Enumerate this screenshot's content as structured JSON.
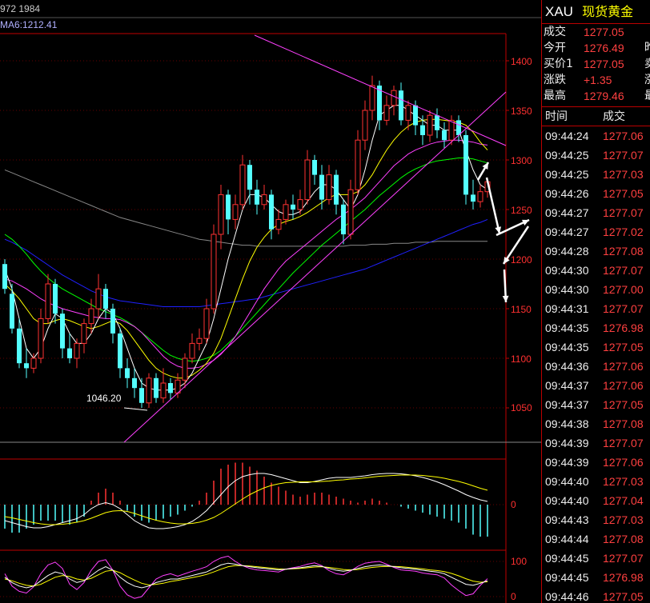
{
  "header": {
    "partial_text": "972 1984",
    "ma_label": "MA6:1212.41"
  },
  "price_axis": [
    "1400",
    "1350",
    "1300",
    "1250",
    "1200",
    "1150",
    "1100",
    "1050"
  ],
  "macd_axis": [
    "0"
  ],
  "kdj_axis": [
    "100",
    "0"
  ],
  "annotation_low": "1046.20",
  "colors": {
    "up": "#ff3232",
    "down": "#54ffff",
    "axis": "#c00000",
    "ma_short": "#ffffff",
    "ma_mid": "#ffff00",
    "ma_long": "#ff40ff",
    "ma_green": "#00ff00",
    "ma_blue": "#2020ff",
    "ma_gray": "#888888",
    "trend": "#ff40ff"
  },
  "sidebar": {
    "code": "XAU",
    "name": "现货黄金",
    "quotes": [
      {
        "label": "成交",
        "value": "1277.05",
        "extra": ""
      },
      {
        "label": "今开",
        "value": "1276.49",
        "extra": "昨"
      },
      {
        "label": "买价1",
        "value": "1277.05",
        "extra": "卖"
      },
      {
        "label": "涨跌",
        "value": "+1.35",
        "extra": "涨"
      },
      {
        "label": "最高",
        "value": "1279.46",
        "extra": "最"
      }
    ],
    "ticks_header": {
      "time": "时间",
      "price": "成交"
    },
    "ticks": [
      {
        "time": "09:44:24",
        "price": "1277.06"
      },
      {
        "time": "09:44:25",
        "price": "1277.07"
      },
      {
        "time": "09:44:25",
        "price": "1277.03"
      },
      {
        "time": "09:44:26",
        "price": "1277.05"
      },
      {
        "time": "09:44:27",
        "price": "1277.07"
      },
      {
        "time": "09:44:27",
        "price": "1277.02"
      },
      {
        "time": "09:44:28",
        "price": "1277.08"
      },
      {
        "time": "09:44:30",
        "price": "1277.07"
      },
      {
        "time": "09:44:30",
        "price": "1277.00"
      },
      {
        "time": "09:44:31",
        "price": "1277.07"
      },
      {
        "time": "09:44:35",
        "price": "1276.98"
      },
      {
        "time": "09:44:35",
        "price": "1277.05"
      },
      {
        "time": "09:44:36",
        "price": "1277.06"
      },
      {
        "time": "09:44:37",
        "price": "1277.06"
      },
      {
        "time": "09:44:37",
        "price": "1277.05"
      },
      {
        "time": "09:44:38",
        "price": "1277.08"
      },
      {
        "time": "09:44:39",
        "price": "1277.07"
      },
      {
        "time": "09:44:39",
        "price": "1277.06"
      },
      {
        "time": "09:44:40",
        "price": "1277.03"
      },
      {
        "time": "09:44:40",
        "price": "1277.04"
      },
      {
        "time": "09:44:43",
        "price": "1277.03"
      },
      {
        "time": "09:44:44",
        "price": "1277.08"
      },
      {
        "time": "09:44:45",
        "price": "1277.07"
      },
      {
        "time": "09:44:45",
        "price": "1276.98"
      },
      {
        "time": "09:44:46",
        "price": "1277.05"
      }
    ]
  },
  "chart_data": {
    "type": "candlestick",
    "ylim": [
      1030,
      1420
    ],
    "y_ticks": [
      1050,
      1100,
      1150,
      1200,
      1250,
      1300,
      1350,
      1400
    ],
    "candles": [
      [
        1195,
        1170,
        1200,
        1165
      ],
      [
        1165,
        1130,
        1175,
        1125
      ],
      [
        1130,
        1095,
        1140,
        1090
      ],
      [
        1095,
        1090,
        1110,
        1080
      ],
      [
        1090,
        1100,
        1105,
        1085
      ],
      [
        1100,
        1140,
        1150,
        1095
      ],
      [
        1140,
        1175,
        1185,
        1135
      ],
      [
        1175,
        1145,
        1180,
        1135
      ],
      [
        1145,
        1110,
        1150,
        1100
      ],
      [
        1110,
        1100,
        1125,
        1095
      ],
      [
        1100,
        1115,
        1120,
        1090
      ],
      [
        1115,
        1135,
        1140,
        1105
      ],
      [
        1135,
        1150,
        1160,
        1125
      ],
      [
        1150,
        1170,
        1185,
        1140
      ],
      [
        1170,
        1150,
        1175,
        1140
      ],
      [
        1150,
        1125,
        1155,
        1115
      ],
      [
        1125,
        1090,
        1130,
        1080
      ],
      [
        1090,
        1080,
        1100,
        1070
      ],
      [
        1080,
        1070,
        1090,
        1060
      ],
      [
        1070,
        1055,
        1080,
        1050
      ],
      [
        1055,
        1080,
        1085,
        1050
      ],
      [
        1080,
        1060,
        1085,
        1055
      ],
      [
        1060,
        1075,
        1090,
        1055
      ],
      [
        1075,
        1065,
        1080,
        1058
      ],
      [
        1065,
        1078,
        1085,
        1060
      ],
      [
        1078,
        1100,
        1105,
        1070
      ],
      [
        1100,
        1115,
        1125,
        1095
      ],
      [
        1115,
        1120,
        1130,
        1108
      ],
      [
        1120,
        1150,
        1160,
        1115
      ],
      [
        1150,
        1225,
        1235,
        1145
      ],
      [
        1225,
        1265,
        1275,
        1210
      ],
      [
        1265,
        1240,
        1270,
        1225
      ],
      [
        1240,
        1255,
        1265,
        1230
      ],
      [
        1255,
        1295,
        1305,
        1250
      ],
      [
        1295,
        1270,
        1300,
        1255
      ],
      [
        1270,
        1255,
        1280,
        1245
      ],
      [
        1255,
        1265,
        1275,
        1250
      ],
      [
        1265,
        1230,
        1270,
        1220
      ],
      [
        1230,
        1240,
        1250,
        1225
      ],
      [
        1240,
        1255,
        1260,
        1235
      ],
      [
        1255,
        1250,
        1265,
        1240
      ],
      [
        1250,
        1260,
        1270,
        1245
      ],
      [
        1260,
        1300,
        1310,
        1255
      ],
      [
        1300,
        1285,
        1305,
        1275
      ],
      [
        1285,
        1260,
        1295,
        1250
      ],
      [
        1260,
        1285,
        1295,
        1255
      ],
      [
        1285,
        1255,
        1290,
        1245
      ],
      [
        1255,
        1225,
        1260,
        1215
      ],
      [
        1225,
        1270,
        1280,
        1220
      ],
      [
        1270,
        1320,
        1330,
        1265
      ],
      [
        1320,
        1350,
        1360,
        1310
      ],
      [
        1350,
        1375,
        1385,
        1340
      ],
      [
        1375,
        1340,
        1380,
        1330
      ],
      [
        1340,
        1355,
        1365,
        1335
      ],
      [
        1355,
        1370,
        1375,
        1345
      ],
      [
        1370,
        1340,
        1378,
        1335
      ],
      [
        1340,
        1355,
        1360,
        1330
      ],
      [
        1355,
        1335,
        1360,
        1325
      ],
      [
        1335,
        1325,
        1345,
        1315
      ],
      [
        1325,
        1345,
        1350,
        1318
      ],
      [
        1345,
        1330,
        1352,
        1322
      ],
      [
        1330,
        1320,
        1338,
        1312
      ],
      [
        1320,
        1340,
        1345,
        1315
      ],
      [
        1340,
        1325,
        1345,
        1318
      ],
      [
        1325,
        1265,
        1330,
        1255
      ],
      [
        1265,
        1258,
        1280,
        1250
      ],
      [
        1258,
        1268,
        1275,
        1252
      ],
      [
        1268,
        1278,
        1282,
        1262
      ]
    ],
    "ma_short": [
      1190,
      1170,
      1140,
      1110,
      1100,
      1110,
      1130,
      1145,
      1140,
      1125,
      1115,
      1115,
      1125,
      1140,
      1150,
      1145,
      1130,
      1110,
      1090,
      1075,
      1070,
      1068,
      1068,
      1068,
      1070,
      1075,
      1085,
      1100,
      1115,
      1140,
      1170,
      1200,
      1225,
      1250,
      1265,
      1265,
      1262,
      1255,
      1248,
      1245,
      1245,
      1248,
      1258,
      1268,
      1275,
      1275,
      1270,
      1260,
      1250,
      1265,
      1290,
      1320,
      1345,
      1350,
      1355,
      1355,
      1350,
      1345,
      1340,
      1335,
      1335,
      1330,
      1330,
      1330,
      1310,
      1290,
      1275,
      1270
    ],
    "ma_mid": [
      1175,
      1168,
      1160,
      1150,
      1140,
      1135,
      1135,
      1138,
      1140,
      1138,
      1135,
      1132,
      1130,
      1132,
      1135,
      1138,
      1135,
      1128,
      1118,
      1108,
      1098,
      1090,
      1085,
      1082,
      1080,
      1080,
      1083,
      1088,
      1095,
      1105,
      1120,
      1140,
      1160,
      1180,
      1198,
      1212,
      1222,
      1230,
      1235,
      1238,
      1240,
      1243,
      1247,
      1252,
      1257,
      1262,
      1265,
      1265,
      1265,
      1268,
      1275,
      1285,
      1298,
      1310,
      1320,
      1328,
      1334,
      1338,
      1340,
      1341,
      1341,
      1340,
      1339,
      1338,
      1335,
      1328,
      1318,
      1310
    ],
    "ma_long": [
      1180,
      1178,
      1174,
      1170,
      1165,
      1160,
      1156,
      1153,
      1150,
      1148,
      1146,
      1144,
      1142,
      1141,
      1140,
      1140,
      1139,
      1136,
      1132,
      1126,
      1118,
      1110,
      1102,
      1096,
      1092,
      1090,
      1090,
      1091,
      1094,
      1098,
      1104,
      1112,
      1122,
      1134,
      1146,
      1158,
      1170,
      1180,
      1190,
      1198,
      1204,
      1210,
      1216,
      1222,
      1228,
      1234,
      1240,
      1245,
      1250,
      1256,
      1262,
      1270,
      1278,
      1286,
      1294,
      1300,
      1306,
      1310,
      1313,
      1316,
      1318,
      1319,
      1320,
      1320,
      1319,
      1318,
      1316,
      1315
    ],
    "ma_green": [
      1225,
      1220,
      1213,
      1205,
      1196,
      1188,
      1181,
      1175,
      1170,
      1166,
      1162,
      1158,
      1154,
      1150,
      1147,
      1144,
      1141,
      1137,
      1132,
      1126,
      1120,
      1114,
      1108,
      1103,
      1100,
      1098,
      1097,
      1098,
      1100,
      1103,
      1108,
      1115,
      1122,
      1130,
      1138,
      1146,
      1154,
      1162,
      1170,
      1178,
      1186,
      1193,
      1200,
      1207,
      1214,
      1220,
      1226,
      1232,
      1238,
      1244,
      1250,
      1257,
      1264,
      1270,
      1276,
      1282,
      1287,
      1291,
      1294,
      1297,
      1299,
      1300,
      1301,
      1302,
      1302,
      1301,
      1299,
      1297
    ],
    "ma_blue": [
      1220,
      1217,
      1213,
      1209,
      1204,
      1199,
      1194,
      1189,
      1184,
      1180,
      1176,
      1172,
      1168,
      1165,
      1162,
      1160,
      1158,
      1157,
      1156,
      1155,
      1154,
      1153,
      1152,
      1152,
      1152,
      1152,
      1152,
      1152,
      1153,
      1154,
      1155,
      1156,
      1157,
      1158,
      1159,
      1160,
      1162,
      1164,
      1166,
      1168,
      1170,
      1172,
      1174,
      1176,
      1178,
      1180,
      1182,
      1184,
      1186,
      1188,
      1190,
      1193,
      1196,
      1199,
      1202,
      1205,
      1208,
      1211,
      1214,
      1217,
      1220,
      1223,
      1226,
      1229,
      1232,
      1235,
      1237,
      1240
    ],
    "ma_gray": [
      1290,
      1287,
      1284,
      1281,
      1278,
      1275,
      1272,
      1269,
      1266,
      1263,
      1260,
      1257,
      1254,
      1251,
      1248,
      1245,
      1242,
      1240,
      1238,
      1236,
      1234,
      1232,
      1230,
      1228,
      1226,
      1224,
      1222,
      1220,
      1219,
      1218,
      1217,
      1216,
      1215,
      1214,
      1214,
      1213,
      1213,
      1213,
      1213,
      1213,
      1213,
      1213,
      1213,
      1213,
      1213,
      1213,
      1213,
      1213,
      1214,
      1214,
      1214,
      1215,
      1215,
      1215,
      1216,
      1216,
      1216,
      1217,
      1217,
      1217,
      1218,
      1218,
      1218,
      1218,
      1218,
      1218,
      1218,
      1218
    ],
    "macd_hist": [
      -0.6,
      -0.7,
      -0.7,
      -0.6,
      -0.5,
      -0.4,
      -0.4,
      -0.4,
      -0.45,
      -0.5,
      -0.45,
      -0.3,
      0.1,
      0.3,
      0.4,
      0.3,
      0.1,
      -0.15,
      -0.3,
      -0.4,
      -0.45,
      -0.4,
      -0.35,
      -0.3,
      -0.25,
      -0.15,
      -0.05,
      0.1,
      0.3,
      0.6,
      0.9,
      1.0,
      1.05,
      1.05,
      0.95,
      0.85,
      0.7,
      0.55,
      0.45,
      0.35,
      0.25,
      0.2,
      0.25,
      0.3,
      0.3,
      0.25,
      0.2,
      0.15,
      0.1,
      0.05,
      0.1,
      0.15,
      0.1,
      0.05,
      0.0,
      -0.05,
      -0.1,
      -0.15,
      -0.2,
      -0.25,
      -0.3,
      -0.35,
      -0.4,
      -0.45,
      -0.6,
      -0.75,
      -0.8,
      -0.8
    ],
    "macd_dif": [
      -0.4,
      -0.45,
      -0.5,
      -0.55,
      -0.58,
      -0.58,
      -0.55,
      -0.5,
      -0.45,
      -0.4,
      -0.35,
      -0.25,
      -0.1,
      0.0,
      0.05,
      0.0,
      -0.1,
      -0.25,
      -0.4,
      -0.5,
      -0.58,
      -0.6,
      -0.6,
      -0.58,
      -0.55,
      -0.5,
      -0.42,
      -0.3,
      -0.15,
      0.05,
      0.25,
      0.45,
      0.6,
      0.7,
      0.75,
      0.78,
      0.78,
      0.75,
      0.7,
      0.65,
      0.6,
      0.55,
      0.55,
      0.58,
      0.62,
      0.66,
      0.68,
      0.68,
      0.68,
      0.7,
      0.72,
      0.75,
      0.77,
      0.78,
      0.78,
      0.77,
      0.75,
      0.72,
      0.68,
      0.63,
      0.57,
      0.5,
      0.42,
      0.34,
      0.25,
      0.18,
      0.12,
      0.08
    ],
    "macd_dea": [
      -0.3,
      -0.33,
      -0.37,
      -0.41,
      -0.45,
      -0.48,
      -0.5,
      -0.5,
      -0.49,
      -0.47,
      -0.44,
      -0.4,
      -0.34,
      -0.27,
      -0.2,
      -0.16,
      -0.15,
      -0.17,
      -0.22,
      -0.28,
      -0.34,
      -0.39,
      -0.43,
      -0.46,
      -0.48,
      -0.48,
      -0.47,
      -0.44,
      -0.39,
      -0.32,
      -0.22,
      -0.1,
      0.02,
      0.14,
      0.25,
      0.34,
      0.42,
      0.48,
      0.52,
      0.55,
      0.56,
      0.57,
      0.57,
      0.57,
      0.58,
      0.59,
      0.61,
      0.62,
      0.64,
      0.65,
      0.67,
      0.69,
      0.71,
      0.72,
      0.73,
      0.74,
      0.74,
      0.74,
      0.73,
      0.71,
      0.69,
      0.66,
      0.62,
      0.58,
      0.53,
      0.47,
      0.41,
      0.36
    ],
    "kdj_k": [
      55,
      40,
      30,
      25,
      30,
      45,
      60,
      70,
      65,
      50,
      40,
      45,
      60,
      75,
      85,
      75,
      55,
      40,
      30,
      25,
      30,
      40,
      45,
      50,
      50,
      55,
      60,
      65,
      70,
      80,
      90,
      95,
      92,
      88,
      85,
      82,
      80,
      78,
      76,
      78,
      80,
      82,
      85,
      88,
      86,
      80,
      75,
      72,
      75,
      80,
      85,
      88,
      90,
      88,
      85,
      82,
      80,
      78,
      75,
      72,
      70,
      65,
      55,
      45,
      35,
      32,
      38,
      45
    ],
    "kdj_d": [
      50,
      45,
      38,
      32,
      30,
      35,
      45,
      55,
      60,
      57,
      50,
      47,
      52,
      62,
      72,
      75,
      68,
      57,
      47,
      38,
      33,
      35,
      38,
      43,
      46,
      50,
      54,
      58,
      63,
      70,
      78,
      85,
      88,
      88,
      87,
      85,
      83,
      81,
      79,
      78,
      79,
      80,
      82,
      84,
      85,
      83,
      80,
      77,
      76,
      77,
      80,
      83,
      85,
      86,
      86,
      85,
      83,
      81,
      79,
      76,
      74,
      71,
      66,
      59,
      51,
      44,
      41,
      42
    ],
    "kdj_j": [
      65,
      30,
      15,
      10,
      28,
      65,
      90,
      98,
      80,
      35,
      20,
      40,
      75,
      100,
      105,
      75,
      30,
      5,
      -5,
      0,
      25,
      50,
      60,
      65,
      58,
      65,
      72,
      78,
      85,
      100,
      110,
      115,
      100,
      88,
      80,
      76,
      74,
      72,
      70,
      78,
      82,
      86,
      92,
      96,
      88,
      74,
      65,
      62,
      73,
      86,
      95,
      98,
      100,
      92,
      83,
      76,
      74,
      72,
      67,
      64,
      62,
      53,
      33,
      17,
      3,
      8,
      32,
      51
    ],
    "annotations": [
      {
        "text": "1046.20",
        "x_index": 19,
        "value": 1046.2
      }
    ]
  }
}
